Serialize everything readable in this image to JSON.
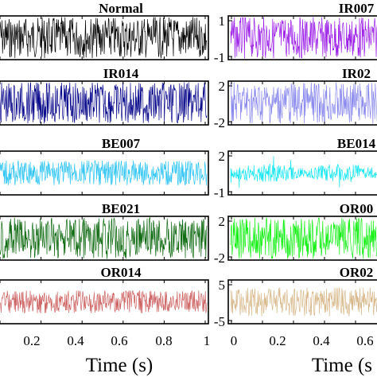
{
  "chart_data": [
    {
      "type": "line",
      "title": "Normal",
      "amp": 1.0,
      "color": "#000000",
      "xlim": [
        0,
        1
      ],
      "yticks": []
    },
    {
      "type": "line",
      "title": "IR007",
      "amp": 1.0,
      "color": "#9b1ee6",
      "xlim": [
        0,
        1
      ],
      "yticks": [
        "1",
        "-1"
      ]
    },
    {
      "type": "line",
      "title": "IR014",
      "amp": 1.0,
      "color": "#0a0a8c",
      "xlim": [
        0,
        1
      ],
      "yticks": []
    },
    {
      "type": "line",
      "title": "IR02",
      "amp": 1.0,
      "color": "#8a8aec",
      "xlim": [
        0,
        1
      ],
      "yticks": [
        "2",
        "-2"
      ]
    },
    {
      "type": "line",
      "title": "BE007",
      "amp": 0.6,
      "color": "#2bc4f2",
      "xlim": [
        0,
        1
      ],
      "yticks": []
    },
    {
      "type": "line",
      "title": "BE014",
      "amp": 0.45,
      "color": "#14e6f0",
      "xlim": [
        0,
        1
      ],
      "yticks": [
        "2",
        "-1"
      ]
    },
    {
      "type": "line",
      "title": "BE021",
      "amp": 1.0,
      "color": "#0f6a12",
      "xlim": [
        0,
        1
      ],
      "yticks": []
    },
    {
      "type": "line",
      "title": "OR00",
      "amp": 1.0,
      "color": "#14f014",
      "xlim": [
        0,
        1
      ],
      "yticks": [
        "2",
        "-2"
      ]
    },
    {
      "type": "line",
      "title": "OR014",
      "amp": 0.55,
      "color": "#cd6464",
      "xlim": [
        0,
        1
      ],
      "yticks": []
    },
    {
      "type": "line",
      "title": "OR02",
      "amp": 0.7,
      "color": "#d7b98c",
      "xlim": [
        0,
        1
      ],
      "yticks": [
        "5",
        "-5"
      ]
    }
  ],
  "xaxis": {
    "left_ticks": [
      "0.2",
      "0.4",
      "0.6",
      "0.8",
      "1"
    ],
    "right_ticks": [
      "0",
      "0.2",
      "0.4",
      "0.6"
    ],
    "label_left": "Time (s)",
    "label_right": "Time (s"
  }
}
